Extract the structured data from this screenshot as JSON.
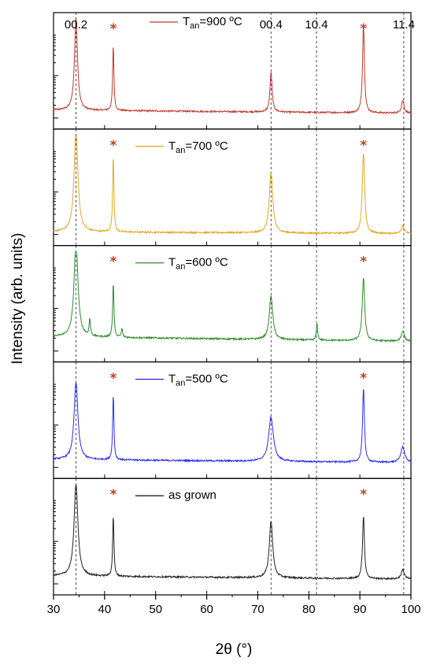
{
  "chart_data": {
    "type": "line",
    "xlabel": "2θ (°)",
    "ylabel": "Intensity (arb. units)",
    "xlim": [
      30,
      100
    ],
    "x_ticks": [
      30,
      40,
      50,
      60,
      70,
      80,
      90,
      100
    ],
    "y_scale": "log",
    "grid": false,
    "reference_lines": [
      {
        "x": 34.4,
        "label": "00.2"
      },
      {
        "x": 72.6,
        "label": "00.4"
      },
      {
        "x": 81.5,
        "label": "10.4"
      },
      {
        "x": 98.6,
        "label": "11.4"
      }
    ],
    "substrate_peaks": [
      41.7,
      90.7
    ],
    "substrate_marker": "*",
    "series": [
      {
        "name": "Tan=900 ºC",
        "legend_main": "T",
        "legend_sub": "an",
        "legend_rest": "=900 ºC",
        "color": "#c0392b",
        "baseline": 0.12,
        "peaks": [
          {
            "x": 34.4,
            "h": 0.88,
            "w": 0.35
          },
          {
            "x": 41.7,
            "h": 0.62,
            "w": 0.15
          },
          {
            "x": 72.6,
            "h": 0.38,
            "w": 0.25
          },
          {
            "x": 90.7,
            "h": 0.84,
            "w": 0.22
          },
          {
            "x": 98.4,
            "h": 0.12,
            "w": 0.3
          }
        ]
      },
      {
        "name": "Tan=700 ºC",
        "legend_main": "T",
        "legend_sub": "an",
        "legend_rest": "=700 ºC",
        "color": "#e0a822",
        "baseline": 0.07,
        "peaks": [
          {
            "x": 34.4,
            "h": 0.95,
            "w": 0.45
          },
          {
            "x": 41.7,
            "h": 0.72,
            "w": 0.15
          },
          {
            "x": 72.6,
            "h": 0.58,
            "w": 0.4
          },
          {
            "x": 90.7,
            "h": 0.76,
            "w": 0.28
          },
          {
            "x": 98.4,
            "h": 0.08,
            "w": 0.35
          }
        ]
      },
      {
        "name": "Tan=600 ºC",
        "legend_main": "T",
        "legend_sub": "an",
        "legend_rest": "=600 ºC",
        "color": "#2e8b2e",
        "baseline": 0.18,
        "peaks": [
          {
            "x": 34.4,
            "h": 0.92,
            "w": 0.45
          },
          {
            "x": 37.1,
            "h": 0.16,
            "w": 0.15
          },
          {
            "x": 41.7,
            "h": 0.52,
            "w": 0.15
          },
          {
            "x": 43.4,
            "h": 0.08,
            "w": 0.15
          },
          {
            "x": 72.6,
            "h": 0.42,
            "w": 0.4
          },
          {
            "x": 81.6,
            "h": 0.16,
            "w": 0.15
          },
          {
            "x": 90.7,
            "h": 0.6,
            "w": 0.28
          },
          {
            "x": 98.4,
            "h": 0.1,
            "w": 0.35
          }
        ]
      },
      {
        "name": "Tan=500 ºC",
        "legend_main": "T",
        "legend_sub": "an",
        "legend_rest": "=500 ºC",
        "color": "#2d2df0",
        "baseline": 0.12,
        "peaks": [
          {
            "x": 34.4,
            "h": 0.73,
            "w": 0.45
          },
          {
            "x": 41.7,
            "h": 0.62,
            "w": 0.15
          },
          {
            "x": 72.6,
            "h": 0.42,
            "w": 0.55
          },
          {
            "x": 90.7,
            "h": 0.7,
            "w": 0.22
          },
          {
            "x": 98.4,
            "h": 0.15,
            "w": 0.45
          }
        ]
      },
      {
        "name": "as grown",
        "legend_main": "as grown",
        "legend_sub": "",
        "legend_rest": "",
        "color": "#222222",
        "baseline": 0.12,
        "peaks": [
          {
            "x": 34.4,
            "h": 0.87,
            "w": 0.45
          },
          {
            "x": 41.7,
            "h": 0.58,
            "w": 0.15
          },
          {
            "x": 72.6,
            "h": 0.54,
            "w": 0.4
          },
          {
            "x": 90.7,
            "h": 0.6,
            "w": 0.22
          },
          {
            "x": 98.4,
            "h": 0.09,
            "w": 0.35
          }
        ]
      }
    ]
  }
}
